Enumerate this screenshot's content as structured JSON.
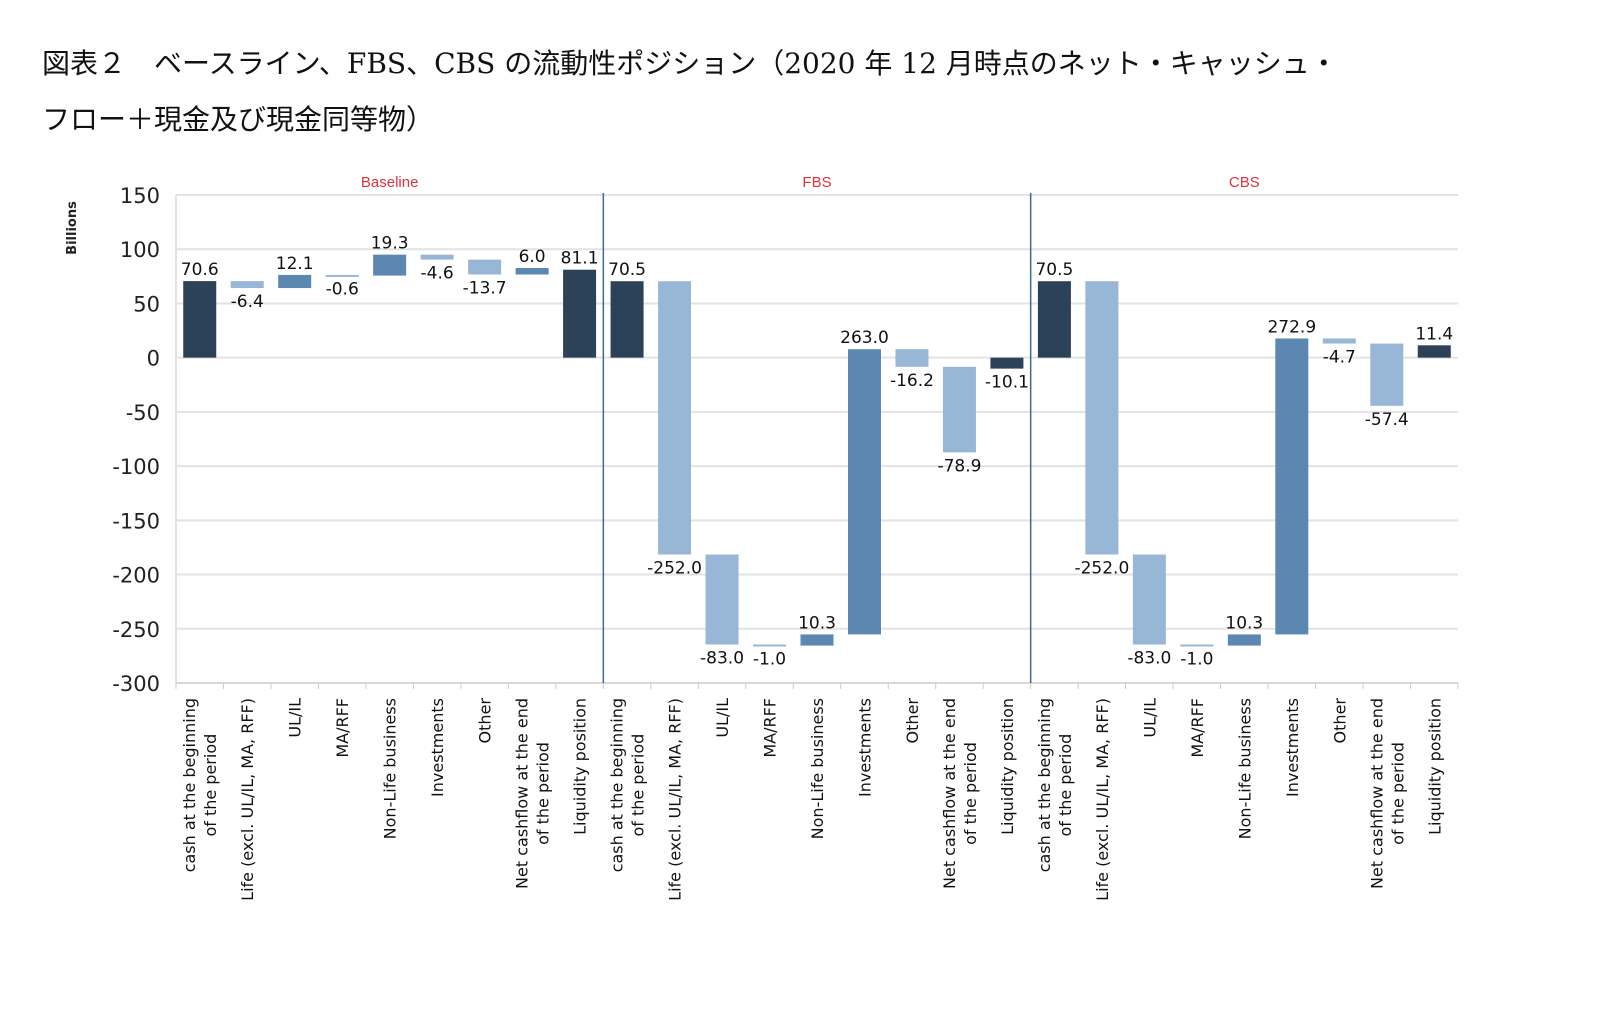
{
  "title_line1": "図表２　ベースライン、FBS、CBS の流動性ポジション（2020 年 12 月時点のネット・キャッシュ・",
  "title_line2": "フロー＋現金及び現金同等物）",
  "chart_data": {
    "type": "waterfall",
    "ylabel": "Billions",
    "ylim": [
      -300,
      150
    ],
    "yticks": [
      150,
      100,
      50,
      0,
      -50,
      -100,
      -150,
      -200,
      -250,
      -300
    ],
    "grid": true,
    "colors": {
      "total": "#2c4259",
      "increase": "#5b87b0",
      "decrease": "#98b7d6",
      "section_label": "#e0323c",
      "separator": "#3d6a93"
    },
    "categories": [
      [
        "cash at the beginning",
        "of the period"
      ],
      [
        "Life (excl. UL/IL, MA, RFF)"
      ],
      [
        "UL/IL"
      ],
      [
        "MA/RFF"
      ],
      [
        "Non-Life business"
      ],
      [
        "Investments"
      ],
      [
        "Other"
      ],
      [
        "Net cashflow at the end",
        "of the period"
      ],
      [
        "Liquidity position"
      ]
    ],
    "sections": [
      {
        "name": "Baseline",
        "values": [
          70.6,
          -6.4,
          12.1,
          -0.6,
          19.3,
          -4.6,
          -13.7,
          6.0,
          81.1
        ],
        "labels": [
          "70.6",
          "-6.4",
          "12.1",
          "-0.6",
          "19.3",
          "-4.6",
          "-13.7",
          "6.0",
          "81.1"
        ]
      },
      {
        "name": "FBS",
        "values": [
          70.5,
          -252.0,
          -83.0,
          -1.0,
          10.3,
          263.0,
          -16.2,
          -78.9,
          -10.1
        ],
        "labels": [
          "70.5",
          "-252.0",
          "-83.0",
          "-1.0",
          "10.3",
          "263.0",
          "-16.2",
          "-78.9",
          "-10.1"
        ]
      },
      {
        "name": "CBS",
        "values": [
          70.5,
          -252.0,
          -83.0,
          -1.0,
          10.3,
          272.9,
          -4.7,
          -57.4,
          11.4
        ],
        "labels": [
          "70.5",
          "-252.0",
          "-83.0",
          "-1.0",
          "10.3",
          "272.9",
          "-4.7",
          "-57.4",
          "11.4"
        ]
      }
    ],
    "total_indices": [
      0,
      8
    ]
  }
}
